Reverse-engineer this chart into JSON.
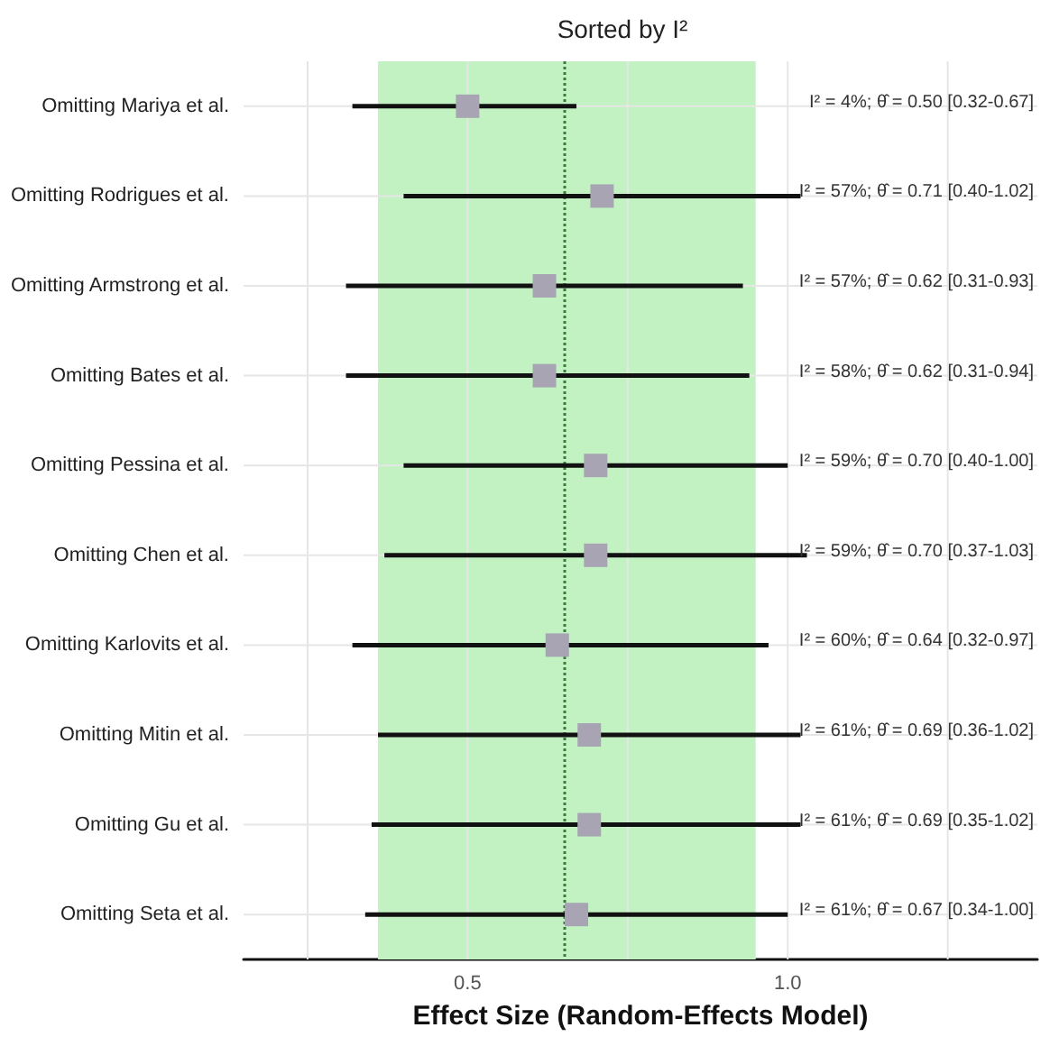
{
  "chart_data": {
    "type": "scatter",
    "orientation": "horizontal",
    "title": "Sorted by I²",
    "xlabel": "Effect Size (Random-Effects Model)",
    "categories": [
      "Omitting Mariya et al.",
      "Omitting Rodrigues et al.",
      "Omitting Armstrong et al.",
      "Omitting Bates et al.",
      "Omitting Pessina et al.",
      "Omitting Chen et al.",
      "Omitting Karlovits et al.",
      "Omitting Mitin et al.",
      "Omitting Gu et al.",
      "Omitting Seta et al."
    ],
    "series": [
      {
        "color": "#a8a4b4",
        "values": [
          0.5,
          0.71,
          0.62,
          0.62,
          0.7,
          0.7,
          0.64,
          0.69,
          0.69,
          0.67
        ],
        "errors": [
          [
            0.32,
            0.67
          ],
          [
            0.4,
            1.02
          ],
          [
            0.31,
            0.93
          ],
          [
            0.31,
            0.94
          ],
          [
            0.4,
            1.0
          ],
          [
            0.37,
            1.03
          ],
          [
            0.32,
            0.97
          ],
          [
            0.36,
            1.02
          ],
          [
            0.35,
            1.02
          ],
          [
            0.34,
            1.0
          ]
        ]
      }
    ],
    "annotations": [
      "I² = 4%; θ̂ = 0.50 [0.32-0.67]",
      "I² = 57%; θ̂ = 0.71 [0.40-1.02]",
      "I² = 57%; θ̂ = 0.62 [0.31-0.93]",
      "I² = 58%; θ̂ = 0.62 [0.31-0.94]",
      "I² = 59%; θ̂ = 0.70 [0.40-1.00]",
      "I² = 59%; θ̂ = 0.70 [0.37-1.03]",
      "I² = 60%; θ̂ = 0.64 [0.32-0.97]",
      "I² = 61%; θ̂ = 0.69 [0.36-1.02]",
      "I² = 61%; θ̂ = 0.69 [0.35-1.02]",
      "I² = 61%; θ̂ = 0.67 [0.34-1.00]"
    ],
    "xlim": [
      0.15,
      1.39
    ],
    "xticks": [
      {
        "value": 0.25,
        "label": null
      },
      0.5,
      {
        "value": 0.75,
        "label": null
      },
      {
        "value": 1,
        "label": "1.0"
      },
      {
        "value": 1.25,
        "label": null
      }
    ],
    "bands": [
      {
        "axis": "x",
        "from": 0.36,
        "to": 0.95,
        "color": "#c2f2c2"
      }
    ],
    "ref_lines": [
      {
        "axis": "x",
        "value": 0.65,
        "color": "#3a7a3a",
        "line_style": "dotted"
      }
    ],
    "marker": "square",
    "grid": true
  }
}
